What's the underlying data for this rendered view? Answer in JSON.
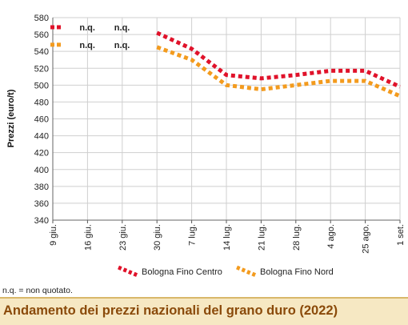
{
  "chart_data": {
    "type": "line",
    "title": "Andamento dei prezzi nazionali del grano duro (2022)",
    "ylabel": "Prezzi (euro/t)",
    "xlabel": "",
    "ylim": [
      340,
      580
    ],
    "yticks": [
      340,
      360,
      380,
      400,
      420,
      440,
      460,
      480,
      500,
      520,
      540,
      560,
      580
    ],
    "grid": true,
    "legend_position": "bottom",
    "categories": [
      "9 giu.",
      "16 giu.",
      "23 giu.",
      "30 giu.",
      "7 lug.",
      "14 lug.",
      "21 lug.",
      "28 lug.",
      "4 ago.",
      "25 ago.",
      "1 set."
    ],
    "series": [
      {
        "name": "Bologna Fino Centro",
        "color": "#e0122a",
        "values": [
          null,
          null,
          null,
          562,
          543,
          512,
          508,
          512,
          517,
          517,
          498
        ]
      },
      {
        "name": "Bologna Fino Nord",
        "color": "#f39b1e",
        "values": [
          null,
          null,
          null,
          545,
          530,
          500,
          495,
          500,
          505,
          505,
          487
        ]
      }
    ],
    "annotations": {
      "nq_label": "n.q.",
      "nq_categories": [
        "9 giu.",
        "16 giu.",
        "23 giu."
      ],
      "nq_shown_at": [
        "16 giu.",
        "23 giu."
      ]
    }
  },
  "footnote": "n.q. = non quotato."
}
